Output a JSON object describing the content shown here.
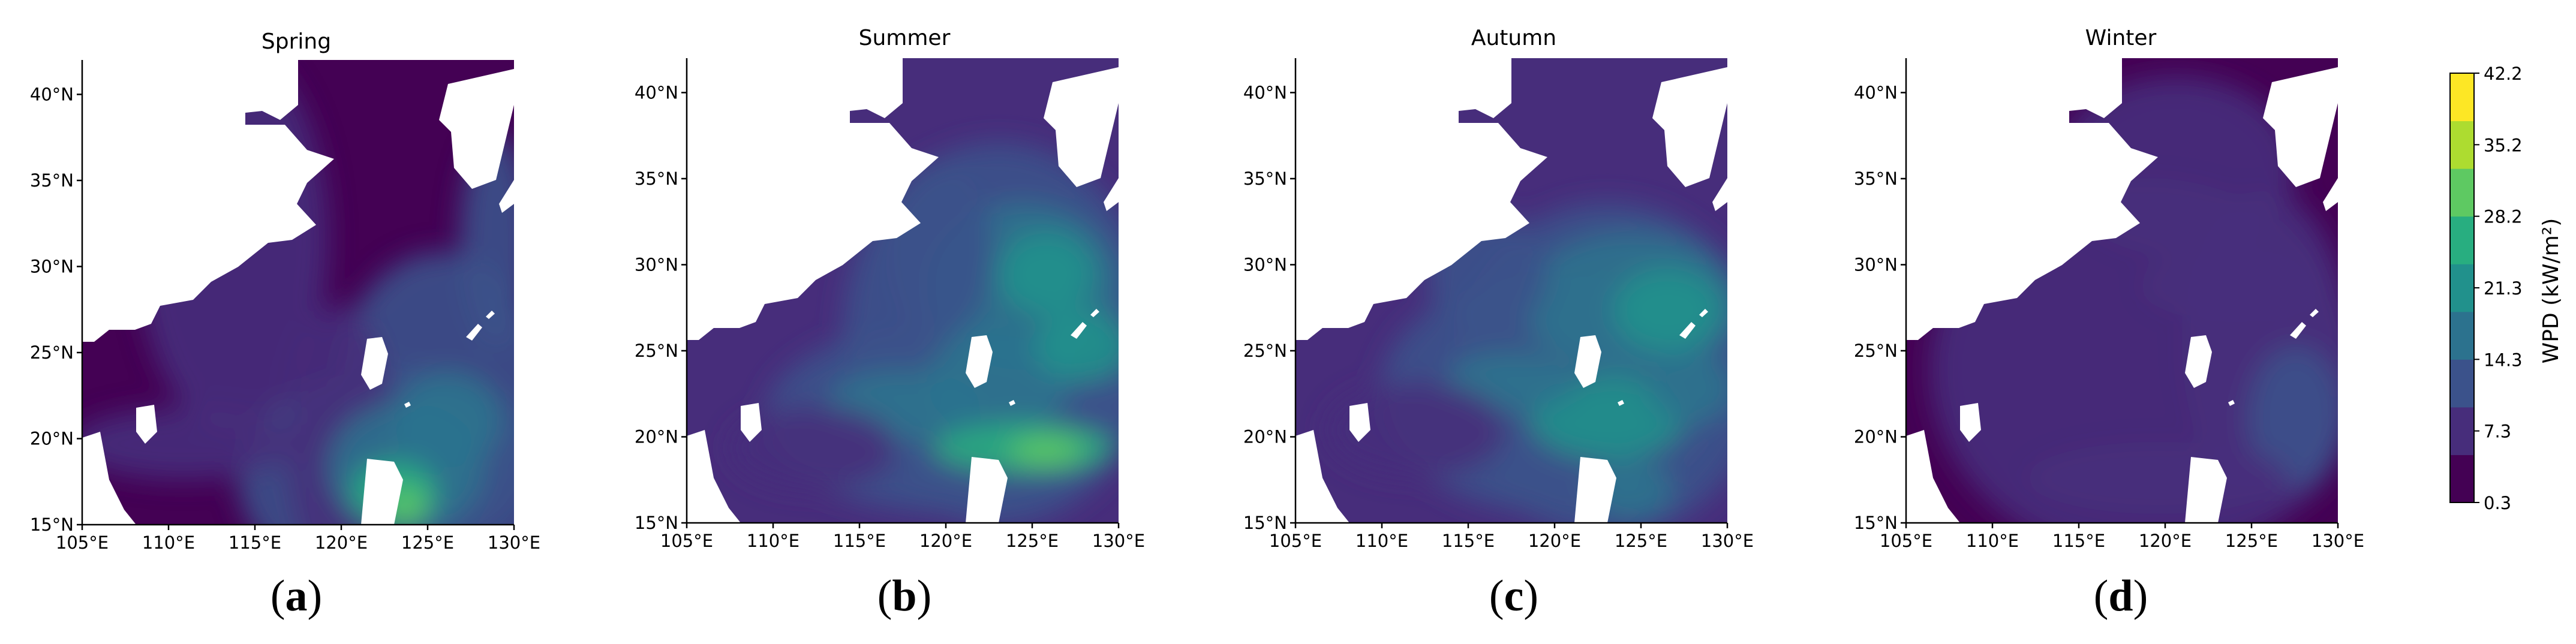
{
  "map": {
    "longitude_ticks": [
      "105°E",
      "110°E",
      "115°E",
      "120°E",
      "125°E",
      "130°E"
    ],
    "latitude_ticks": [
      "15°N",
      "20°N",
      "25°N",
      "30°N",
      "35°N",
      "40°N"
    ],
    "extent": {
      "lon": [
        105,
        130
      ],
      "lat": [
        15,
        42
      ]
    },
    "panels": [
      {
        "title": "Spring",
        "label_open": "(",
        "label_letter": "a",
        "label_close": ")"
      },
      {
        "title": "Summer",
        "label_open": "(",
        "label_letter": "b",
        "label_close": ")"
      },
      {
        "title": "Autumn",
        "label_open": "(",
        "label_letter": "c",
        "label_close": ")"
      },
      {
        "title": "Winter",
        "label_open": "(",
        "label_letter": "d",
        "label_close": ")"
      }
    ],
    "colorbar": {
      "label": "WPD (kW/m²)",
      "tick_labels": [
        "0.3",
        "7.3",
        "14.3",
        "21.3",
        "28.2",
        "35.2",
        "42.2"
      ],
      "range": [
        0.3,
        42.2
      ],
      "colors": [
        "#440154",
        "#472d7b",
        "#3b528b",
        "#2c728e",
        "#21918c",
        "#28ae80",
        "#5ec962",
        "#addc30",
        "#fde725"
      ]
    }
  }
}
